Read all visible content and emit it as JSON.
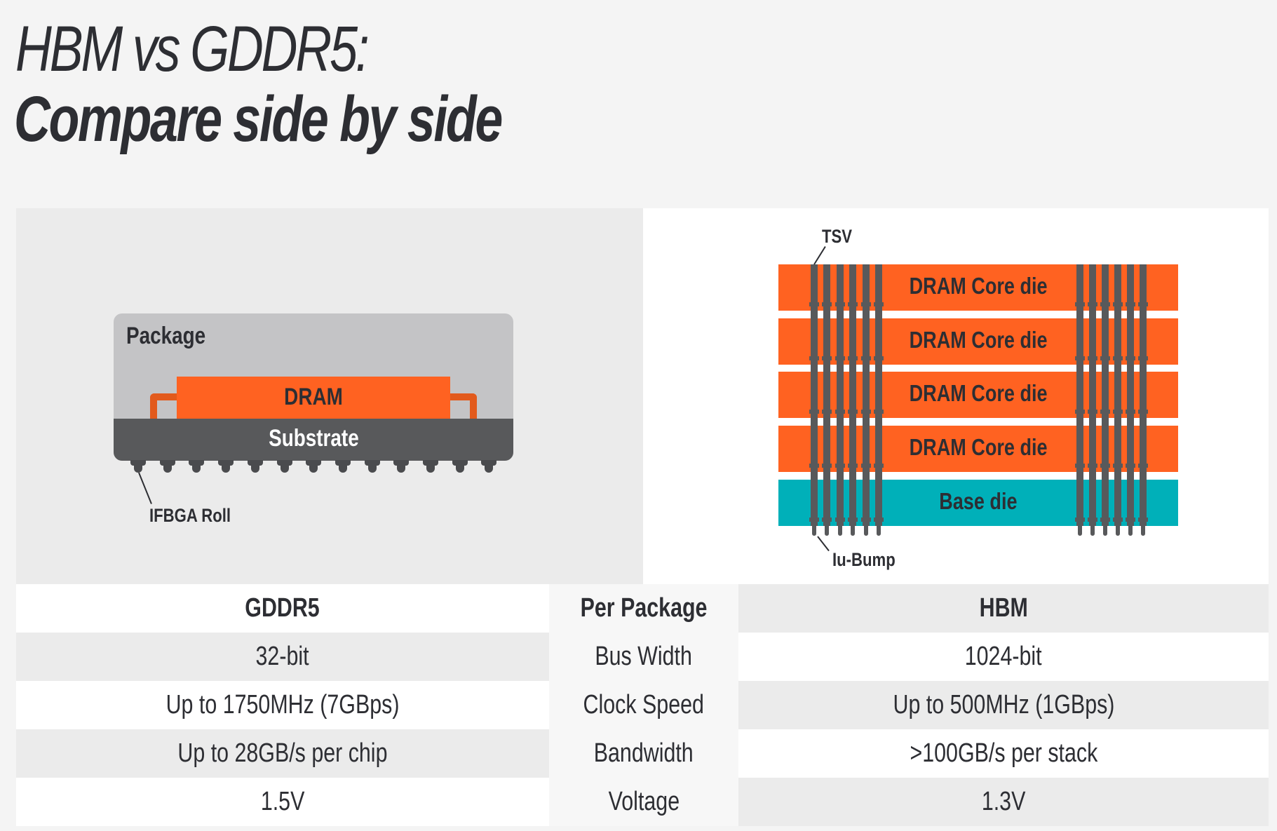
{
  "title": {
    "line1": "HBM vs GDDR5:",
    "line2": "Compare side by side"
  },
  "gddr5_diagram": {
    "package_label": "Package",
    "dram_label": "DRAM",
    "substrate_label": "Substrate",
    "ball_label": "IFBGA Roll",
    "ball_count": 13
  },
  "hbm_diagram": {
    "tsv_label": "TSV",
    "bump_label": "Iu-Bump",
    "dies": [
      {
        "label": "DRAM Core die",
        "type": "core"
      },
      {
        "label": "DRAM Core die",
        "type": "core"
      },
      {
        "label": "DRAM Core die",
        "type": "core"
      },
      {
        "label": "DRAM Core die",
        "type": "core"
      },
      {
        "label": "Base die",
        "type": "base"
      }
    ]
  },
  "colors": {
    "dram_orange": "#ff6221",
    "base_teal": "#00b0b9",
    "substrate_gray": "#58595b",
    "package_gray": "#c4c4c6",
    "text_dark": "#2d2e33"
  },
  "table": {
    "headers": {
      "left": "GDDR5",
      "mid": "Per Package",
      "right": "HBM"
    },
    "rows": [
      {
        "left": "32-bit",
        "mid": "Bus Width",
        "right": "1024-bit"
      },
      {
        "left": "Up to 1750MHz (7GBps)",
        "mid": "Clock Speed",
        "right": "Up to 500MHz (1GBps)"
      },
      {
        "left": "Up to 28GB/s per chip",
        "mid": "Bandwidth",
        "right": ">100GB/s per stack"
      },
      {
        "left": "1.5V",
        "mid": "Voltage",
        "right": "1.3V"
      }
    ]
  }
}
